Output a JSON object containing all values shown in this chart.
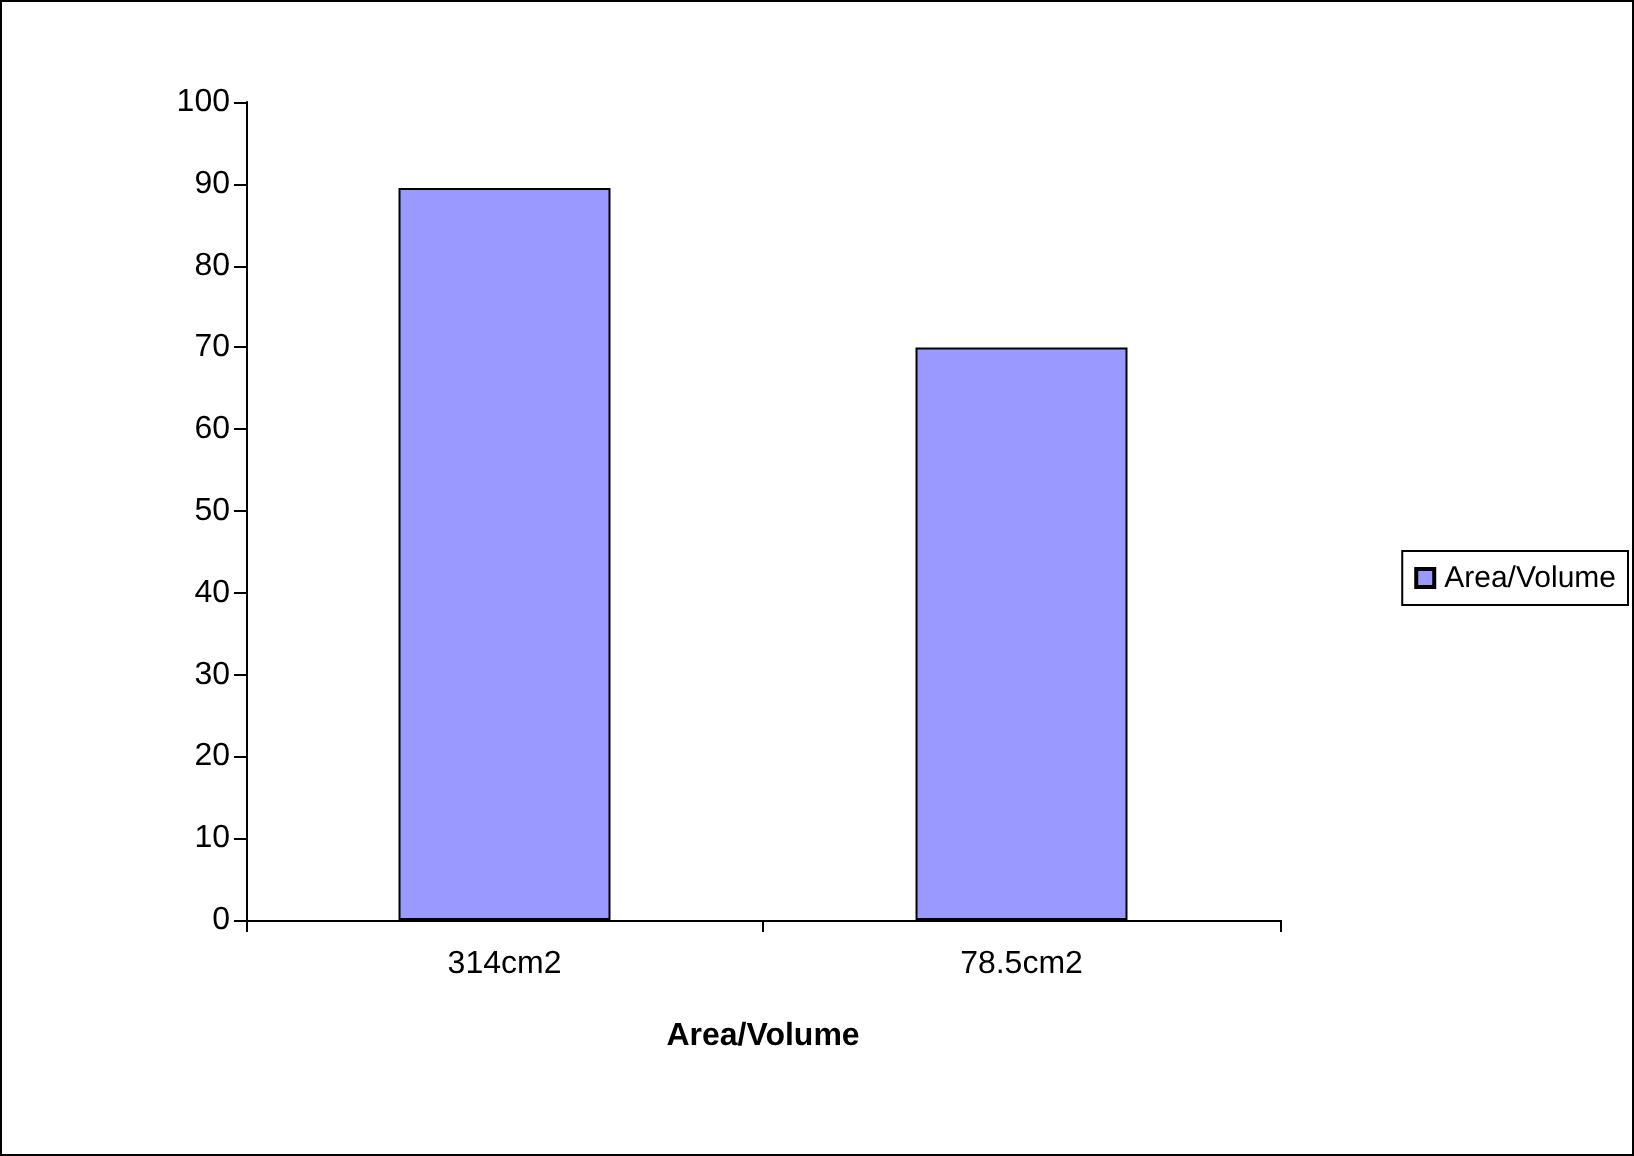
{
  "chart_data": {
    "type": "bar",
    "xlabel": "Area/Volume",
    "categories": [
      "314cm2",
      "78.5cm2"
    ],
    "series": [
      {
        "name": "Area/Volume",
        "color": "#9999ff",
        "values": [
          89.5,
          70
        ]
      }
    ],
    "ylim": [
      0,
      100
    ],
    "yticks": [
      0,
      10,
      20,
      30,
      40,
      50,
      60,
      70,
      80,
      90,
      100
    ],
    "grid": false,
    "legend": "right"
  }
}
